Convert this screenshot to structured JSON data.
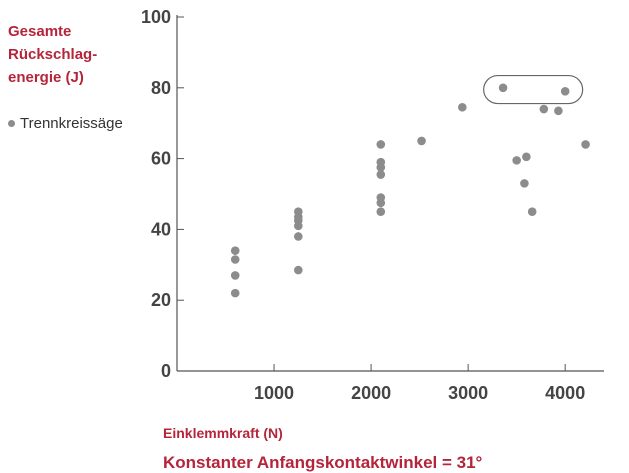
{
  "chart_data": {
    "type": "scatter",
    "ylabel": "Gesamte\nRückschlag-\nenergie (J)",
    "xlabel": "Einklemmkraft (N)",
    "annotation": "Konstanter Anfangskontaktwinkel = 31°",
    "xlim": [
      0,
      4400
    ],
    "ylim": [
      0,
      100
    ],
    "x_ticks": [
      1000,
      2000,
      3000,
      4000
    ],
    "y_ticks": [
      0,
      20,
      40,
      60,
      80,
      100
    ],
    "legend_position": "left",
    "grid": false,
    "series": [
      {
        "name": "Trennkreissäge",
        "color": "#8c8c8c",
        "points": [
          [
            600,
            34
          ],
          [
            600,
            31.5
          ],
          [
            600,
            27
          ],
          [
            600,
            22
          ],
          [
            1250,
            45
          ],
          [
            1250,
            43.5
          ],
          [
            1250,
            42.5
          ],
          [
            1250,
            41
          ],
          [
            1250,
            38
          ],
          [
            1250,
            28.5
          ],
          [
            2100,
            64
          ],
          [
            2100,
            59
          ],
          [
            2100,
            57.5
          ],
          [
            2100,
            55.5
          ],
          [
            2100,
            49
          ],
          [
            2100,
            47.5
          ],
          [
            2100,
            45
          ],
          [
            2520,
            65
          ],
          [
            2940,
            74.5
          ],
          [
            3360,
            80
          ],
          [
            3500,
            59.5
          ],
          [
            3580,
            53
          ],
          [
            3600,
            60.5
          ],
          [
            3660,
            45
          ],
          [
            3780,
            74
          ],
          [
            3930,
            73.5
          ],
          [
            4000,
            79
          ],
          [
            4210,
            64
          ]
        ]
      }
    ],
    "highlight": {
      "x_range": [
        3160,
        4180
      ],
      "y_center": 79.5
    }
  }
}
